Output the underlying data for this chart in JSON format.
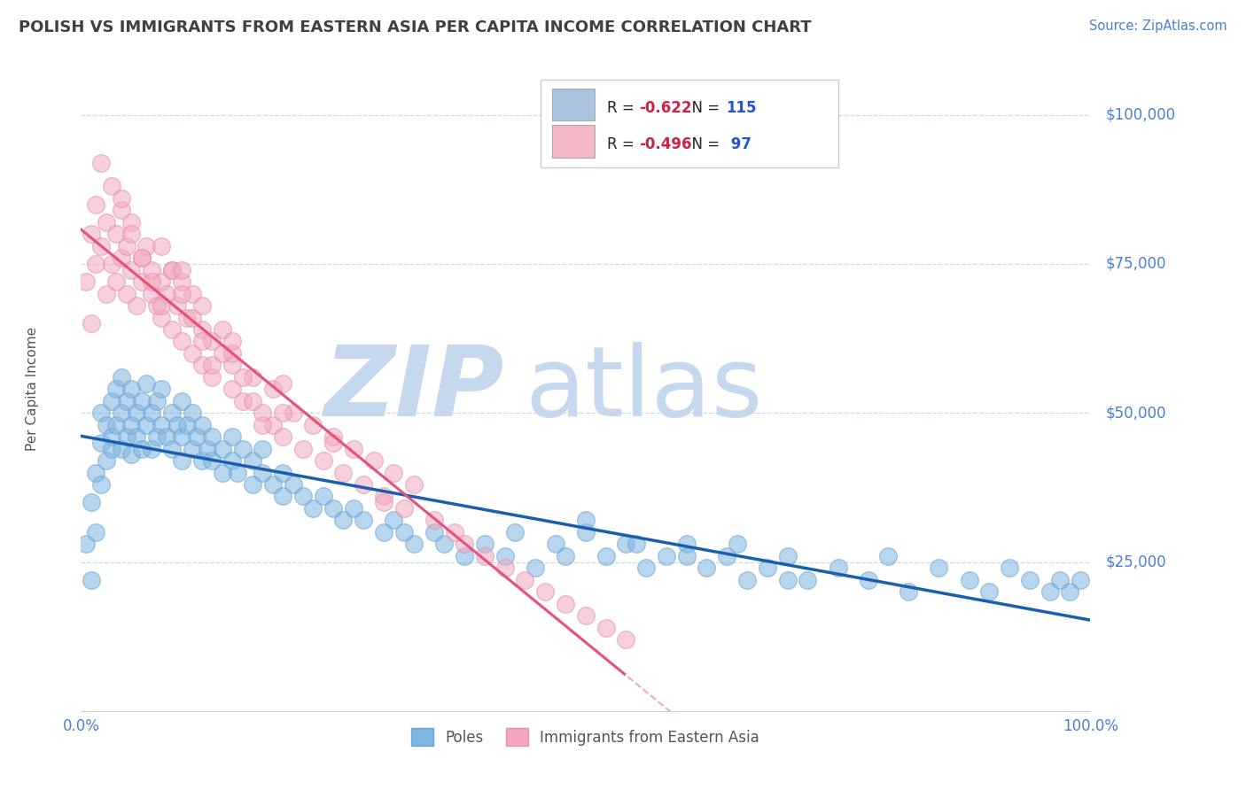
{
  "title": "POLISH VS IMMIGRANTS FROM EASTERN ASIA PER CAPITA INCOME CORRELATION CHART",
  "source": "Source: ZipAtlas.com",
  "ylabel": "Per Capita Income",
  "yticks": [
    0,
    25000,
    50000,
    75000,
    100000
  ],
  "ytick_labels": [
    "",
    "$25,000",
    "$50,000",
    "$75,000",
    "$100,000"
  ],
  "xmin": 0.0,
  "xmax": 1.0,
  "ymin": 0,
  "ymax": 108000,
  "poles_color": "#7fb5e0",
  "poles_edge": "#6aa3d0",
  "eastern_asia_color": "#f4a8c0",
  "eastern_asia_edge": "#e090a8",
  "blue_line_color": "#1a5fae",
  "pink_line_color": "#e8507a",
  "grid_color": "#c8d8ea",
  "title_color": "#404040",
  "axis_label_color": "#4a7fd4",
  "watermark_color": "#c5d8ee",
  "background_color": "#ffffff",
  "legend_blue_color": "#aac4e0",
  "legend_pink_color": "#f4b8c8",
  "legend_text_color": "#333333",
  "legend_r_color": "#e03060",
  "legend_n_color": "#2255cc",
  "poles_x": [
    0.005,
    0.01,
    0.01,
    0.015,
    0.015,
    0.02,
    0.02,
    0.02,
    0.025,
    0.025,
    0.03,
    0.03,
    0.03,
    0.035,
    0.035,
    0.04,
    0.04,
    0.04,
    0.045,
    0.045,
    0.05,
    0.05,
    0.05,
    0.055,
    0.055,
    0.06,
    0.06,
    0.065,
    0.065,
    0.07,
    0.07,
    0.075,
    0.075,
    0.08,
    0.08,
    0.085,
    0.09,
    0.09,
    0.095,
    0.1,
    0.1,
    0.1,
    0.105,
    0.11,
    0.11,
    0.115,
    0.12,
    0.12,
    0.125,
    0.13,
    0.13,
    0.14,
    0.14,
    0.15,
    0.15,
    0.155,
    0.16,
    0.17,
    0.17,
    0.18,
    0.18,
    0.19,
    0.2,
    0.2,
    0.21,
    0.22,
    0.23,
    0.24,
    0.25,
    0.26,
    0.27,
    0.28,
    0.3,
    0.31,
    0.32,
    0.33,
    0.35,
    0.36,
    0.38,
    0.4,
    0.42,
    0.43,
    0.45,
    0.47,
    0.48,
    0.5,
    0.52,
    0.54,
    0.56,
    0.58,
    0.6,
    0.62,
    0.64,
    0.66,
    0.68,
    0.7,
    0.72,
    0.75,
    0.78,
    0.8,
    0.82,
    0.85,
    0.88,
    0.9,
    0.92,
    0.94,
    0.96,
    0.97,
    0.98,
    0.99,
    0.5,
    0.55,
    0.6,
    0.65,
    0.7
  ],
  "poles_y": [
    28000,
    22000,
    35000,
    40000,
    30000,
    45000,
    38000,
    50000,
    42000,
    48000,
    46000,
    52000,
    44000,
    48000,
    54000,
    50000,
    44000,
    56000,
    46000,
    52000,
    48000,
    43000,
    54000,
    50000,
    46000,
    52000,
    44000,
    48000,
    55000,
    50000,
    44000,
    46000,
    52000,
    48000,
    54000,
    46000,
    50000,
    44000,
    48000,
    52000,
    46000,
    42000,
    48000,
    44000,
    50000,
    46000,
    42000,
    48000,
    44000,
    46000,
    42000,
    44000,
    40000,
    42000,
    46000,
    40000,
    44000,
    42000,
    38000,
    40000,
    44000,
    38000,
    40000,
    36000,
    38000,
    36000,
    34000,
    36000,
    34000,
    32000,
    34000,
    32000,
    30000,
    32000,
    30000,
    28000,
    30000,
    28000,
    26000,
    28000,
    26000,
    30000,
    24000,
    28000,
    26000,
    30000,
    26000,
    28000,
    24000,
    26000,
    28000,
    24000,
    26000,
    22000,
    24000,
    26000,
    22000,
    24000,
    22000,
    26000,
    20000,
    24000,
    22000,
    20000,
    24000,
    22000,
    20000,
    22000,
    20000,
    22000,
    32000,
    28000,
    26000,
    28000,
    22000
  ],
  "eastern_x": [
    0.005,
    0.01,
    0.01,
    0.015,
    0.015,
    0.02,
    0.02,
    0.025,
    0.025,
    0.03,
    0.03,
    0.035,
    0.035,
    0.04,
    0.04,
    0.045,
    0.045,
    0.05,
    0.05,
    0.055,
    0.06,
    0.06,
    0.065,
    0.07,
    0.07,
    0.075,
    0.08,
    0.08,
    0.085,
    0.09,
    0.09,
    0.095,
    0.1,
    0.1,
    0.105,
    0.11,
    0.11,
    0.12,
    0.12,
    0.13,
    0.13,
    0.14,
    0.15,
    0.15,
    0.16,
    0.17,
    0.18,
    0.19,
    0.2,
    0.21,
    0.22,
    0.23,
    0.24,
    0.25,
    0.26,
    0.27,
    0.28,
    0.29,
    0.3,
    0.31,
    0.32,
    0.33,
    0.35,
    0.37,
    0.38,
    0.4,
    0.42,
    0.44,
    0.46,
    0.48,
    0.5,
    0.52,
    0.54,
    0.04,
    0.05,
    0.06,
    0.07,
    0.08,
    0.09,
    0.1,
    0.11,
    0.12,
    0.13,
    0.14,
    0.15,
    0.16,
    0.17,
    0.18,
    0.19,
    0.2,
    0.08,
    0.1,
    0.12,
    0.15,
    0.2,
    0.25,
    0.3
  ],
  "eastern_y": [
    72000,
    80000,
    65000,
    75000,
    85000,
    78000,
    92000,
    70000,
    82000,
    75000,
    88000,
    72000,
    80000,
    76000,
    84000,
    70000,
    78000,
    74000,
    82000,
    68000,
    76000,
    72000,
    78000,
    70000,
    74000,
    68000,
    72000,
    66000,
    70000,
    74000,
    64000,
    68000,
    72000,
    62000,
    66000,
    70000,
    60000,
    64000,
    58000,
    62000,
    56000,
    60000,
    54000,
    58000,
    52000,
    56000,
    50000,
    48000,
    46000,
    50000,
    44000,
    48000,
    42000,
    46000,
    40000,
    44000,
    38000,
    42000,
    36000,
    40000,
    34000,
    38000,
    32000,
    30000,
    28000,
    26000,
    24000,
    22000,
    20000,
    18000,
    16000,
    14000,
    12000,
    86000,
    80000,
    76000,
    72000,
    68000,
    74000,
    70000,
    66000,
    62000,
    58000,
    64000,
    60000,
    56000,
    52000,
    48000,
    54000,
    50000,
    78000,
    74000,
    68000,
    62000,
    55000,
    45000,
    35000
  ]
}
